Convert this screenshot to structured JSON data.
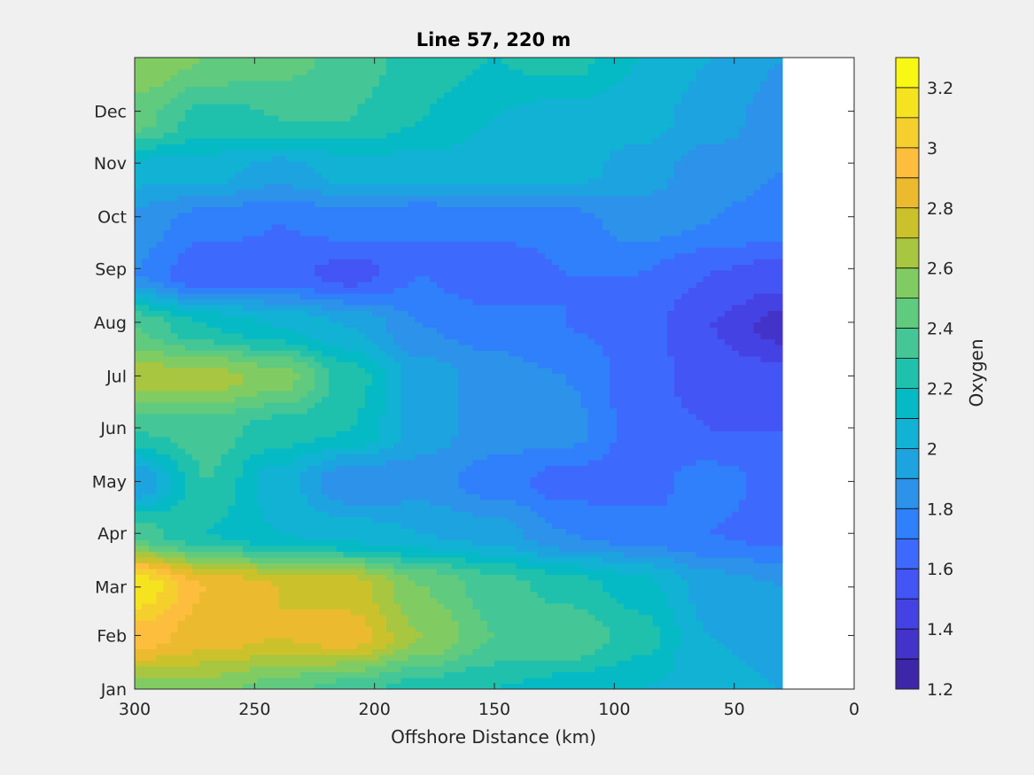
{
  "chart_data": {
    "type": "heatmap",
    "subtype": "filled-contour",
    "title": "Line 57, 220 m",
    "xlabel": "Offshore Distance (km)",
    "ylabel": "",
    "x_reversed": true,
    "xlim": [
      0,
      300
    ],
    "ylim": [
      0,
      365
    ],
    "x_ticks": [
      300,
      250,
      200,
      150,
      100,
      50,
      0
    ],
    "x_tick_labels": [
      "300",
      "250",
      "200",
      "150",
      "100",
      "50",
      "0"
    ],
    "y_ticks": [
      0,
      31,
      59,
      90,
      120,
      151,
      181,
      212,
      243,
      273,
      304,
      334
    ],
    "y_tick_labels": [
      "Jan",
      "Feb",
      "Mar",
      "Apr",
      "May",
      "Jun",
      "Jul",
      "Aug",
      "Sep",
      "Oct",
      "Nov",
      "Dec"
    ],
    "data_x_range": [
      30,
      300
    ],
    "grid": false,
    "colorbar": {
      "label": "Oxygen",
      "clim": [
        1.2,
        3.3
      ],
      "ticks": [
        1.2,
        1.4,
        1.6,
        1.8,
        2.0,
        2.2,
        2.4,
        2.6,
        2.8,
        3.0,
        3.2
      ],
      "tick_labels": [
        "1.2",
        "1.4",
        "1.6",
        "1.8",
        "2",
        "2.2",
        "2.4",
        "2.6",
        "2.8",
        "3",
        "3.2"
      ],
      "levels": [
        1.2,
        1.3,
        1.4,
        1.5,
        1.6,
        1.7,
        1.8,
        1.9,
        2.0,
        2.1,
        2.2,
        2.3,
        2.4,
        2.5,
        2.6,
        2.7,
        2.8,
        2.9,
        3.0,
        3.1,
        3.2,
        3.3
      ],
      "colormap": [
        "#3e26a8",
        "#4433c8",
        "#4542e3",
        "#4355f4",
        "#3d6afd",
        "#2f80fa",
        "#2c92ea",
        "#1da3df",
        "#12b2d5",
        "#05bac4",
        "#1fc1ac",
        "#45c696",
        "#60ca7e",
        "#81cc62",
        "#a8c63f",
        "#cbc22b",
        "#ebba2f",
        "#fdbe3d",
        "#f5cf2e",
        "#f6e320",
        "#f9f714"
      ]
    },
    "grid_x": [
      300,
      270,
      240,
      210,
      180,
      150,
      120,
      90,
      60,
      30
    ],
    "grid_y": [
      0,
      30,
      60,
      90,
      120,
      150,
      180,
      210,
      240,
      270,
      300,
      330,
      365
    ],
    "z": [
      [
        2.55,
        2.55,
        2.45,
        2.35,
        2.25,
        2.2,
        2.15,
        2.1,
        2.05,
        2.0
      ],
      [
        2.95,
        2.85,
        2.8,
        2.85,
        2.6,
        2.4,
        2.4,
        2.25,
        2.0,
        1.95
      ],
      [
        3.2,
        2.9,
        2.8,
        2.75,
        2.5,
        2.35,
        2.25,
        2.15,
        1.95,
        1.9
      ],
      [
        2.35,
        2.2,
        2.1,
        2.05,
        2.0,
        1.95,
        1.8,
        1.75,
        1.7,
        1.65
      ],
      [
        1.9,
        2.3,
        2.05,
        1.8,
        1.85,
        1.75,
        1.65,
        1.65,
        1.75,
        1.65
      ],
      [
        2.3,
        2.35,
        2.25,
        2.2,
        1.95,
        1.85,
        1.85,
        1.65,
        1.6,
        1.6
      ],
      [
        2.65,
        2.65,
        2.55,
        2.25,
        1.95,
        1.85,
        1.8,
        1.65,
        1.55,
        1.55
      ],
      [
        2.4,
        2.2,
        2.1,
        2.0,
        1.8,
        1.75,
        1.7,
        1.65,
        1.5,
        1.35
      ],
      [
        1.8,
        1.6,
        1.65,
        1.55,
        1.7,
        1.6,
        1.7,
        1.7,
        1.6,
        1.55
      ],
      [
        1.85,
        1.75,
        1.7,
        1.75,
        1.7,
        1.75,
        1.75,
        1.85,
        1.8,
        1.75
      ],
      [
        2.05,
        2.05,
        1.95,
        2.05,
        2.05,
        2.05,
        2.05,
        1.95,
        1.85,
        1.8
      ],
      [
        2.45,
        2.25,
        2.3,
        2.3,
        2.2,
        2.1,
        2.05,
        2.05,
        1.95,
        1.85
      ],
      [
        2.6,
        2.5,
        2.45,
        2.35,
        2.25,
        2.2,
        2.25,
        2.1,
        2.0,
        1.9
      ]
    ]
  }
}
